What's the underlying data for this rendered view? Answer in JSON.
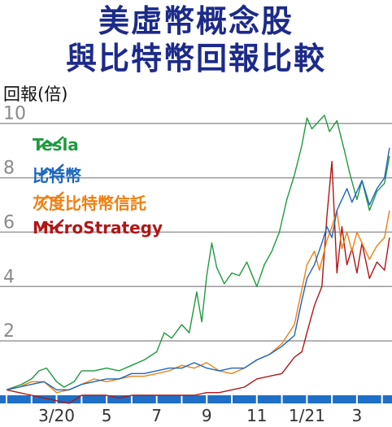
{
  "title_line1": "美虛幣概念股",
  "title_line2": "與比特幣回報比較",
  "chart_data": {
    "type": "line",
    "ylabel": "回報(倍)",
    "yticks": [
      "2",
      "4",
      "6",
      "8",
      "10"
    ],
    "ylim": [
      0,
      10.5
    ],
    "xticks": [
      {
        "label": "3/20",
        "m": 2
      },
      {
        "label": "5",
        "m": 4
      },
      {
        "label": "7",
        "m": 6
      },
      {
        "label": "9",
        "m": 8
      },
      {
        "label": "11",
        "m": 10
      },
      {
        "label": "1/21",
        "m": 12
      },
      {
        "label": "3",
        "m": 14
      }
    ],
    "xlim": [
      0,
      15.4
    ],
    "series": [
      {
        "name": "Tesla",
        "color": "#1e9a3e",
        "points": [
          [
            0,
            0.2
          ],
          [
            0.6,
            0.4
          ],
          [
            1,
            0.6
          ],
          [
            1.3,
            0.9
          ],
          [
            1.6,
            1.0
          ],
          [
            2,
            0.5
          ],
          [
            2.3,
            0.3
          ],
          [
            2.7,
            0.5
          ],
          [
            3,
            0.9
          ],
          [
            3.5,
            0.9
          ],
          [
            4,
            1.0
          ],
          [
            4.5,
            0.9
          ],
          [
            5,
            1.1
          ],
          [
            5.5,
            1.3
          ],
          [
            6,
            1.6
          ],
          [
            6.3,
            2.3
          ],
          [
            6.6,
            2.1
          ],
          [
            7,
            2.6
          ],
          [
            7.3,
            2.3
          ],
          [
            7.6,
            3.8
          ],
          [
            7.8,
            2.7
          ],
          [
            8,
            4.4
          ],
          [
            8.2,
            5.6
          ],
          [
            8.4,
            4.7
          ],
          [
            8.7,
            4.1
          ],
          [
            9,
            4.5
          ],
          [
            9.3,
            4.4
          ],
          [
            9.6,
            4.9
          ],
          [
            10,
            4.0
          ],
          [
            10.3,
            4.8
          ],
          [
            10.6,
            5.3
          ],
          [
            10.9,
            6.0
          ],
          [
            11.2,
            7.2
          ],
          [
            11.5,
            8.1
          ],
          [
            11.8,
            9.2
          ],
          [
            12,
            10.2
          ],
          [
            12.2,
            9.8
          ],
          [
            12.5,
            10.1
          ],
          [
            12.7,
            10.3
          ],
          [
            12.9,
            9.7
          ],
          [
            13.2,
            10.1
          ],
          [
            13.5,
            9.0
          ],
          [
            13.7,
            8.2
          ],
          [
            14,
            7.2
          ],
          [
            14.2,
            7.9
          ],
          [
            14.5,
            6.8
          ],
          [
            14.8,
            7.5
          ],
          [
            15.1,
            7.8
          ],
          [
            15.3,
            8.8
          ]
        ]
      },
      {
        "name": "比特幣",
        "color": "#1a66c0",
        "points": [
          [
            0,
            0.2
          ],
          [
            0.5,
            0.3
          ],
          [
            1,
            0.4
          ],
          [
            1.5,
            0.5
          ],
          [
            2,
            0.2
          ],
          [
            2.5,
            0.2
          ],
          [
            3,
            0.4
          ],
          [
            3.5,
            0.5
          ],
          [
            4,
            0.6
          ],
          [
            4.5,
            0.6
          ],
          [
            5,
            0.8
          ],
          [
            5.5,
            0.8
          ],
          [
            6,
            0.9
          ],
          [
            6.5,
            1.0
          ],
          [
            7,
            1.0
          ],
          [
            7.5,
            1.2
          ],
          [
            8,
            1.0
          ],
          [
            8.5,
            0.9
          ],
          [
            9,
            1.0
          ],
          [
            9.5,
            1.0
          ],
          [
            10,
            1.3
          ],
          [
            10.5,
            1.5
          ],
          [
            11,
            1.8
          ],
          [
            11.5,
            2.2
          ],
          [
            11.8,
            3.5
          ],
          [
            12,
            4.3
          ],
          [
            12.3,
            4.8
          ],
          [
            12.6,
            5.6
          ],
          [
            12.8,
            6.2
          ],
          [
            13,
            5.8
          ],
          [
            13.2,
            6.8
          ],
          [
            13.4,
            7.2
          ],
          [
            13.6,
            7.6
          ],
          [
            13.8,
            7.1
          ],
          [
            14,
            7.5
          ],
          [
            14.2,
            7.9
          ],
          [
            14.5,
            7.0
          ],
          [
            14.8,
            7.6
          ],
          [
            15.1,
            8.0
          ],
          [
            15.3,
            9.1
          ]
        ]
      },
      {
        "name": "灰度比特幣信託",
        "color": "#f07f12",
        "points": [
          [
            0,
            0.2
          ],
          [
            0.5,
            0.3
          ],
          [
            1,
            0.5
          ],
          [
            1.5,
            0.5
          ],
          [
            2,
            0.1
          ],
          [
            2.5,
            0.2
          ],
          [
            3,
            0.4
          ],
          [
            3.5,
            0.6
          ],
          [
            4,
            0.5
          ],
          [
            4.5,
            0.6
          ],
          [
            5,
            0.7
          ],
          [
            5.5,
            0.7
          ],
          [
            6,
            0.8
          ],
          [
            6.5,
            0.9
          ],
          [
            7,
            1.1
          ],
          [
            7.5,
            1.0
          ],
          [
            8,
            1.2
          ],
          [
            8.5,
            0.9
          ],
          [
            9,
            0.8
          ],
          [
            9.5,
            1.0
          ],
          [
            10,
            1.3
          ],
          [
            10.5,
            1.5
          ],
          [
            11,
            1.9
          ],
          [
            11.5,
            2.6
          ],
          [
            11.8,
            3.9
          ],
          [
            12,
            4.8
          ],
          [
            12.3,
            5.3
          ],
          [
            12.5,
            4.6
          ],
          [
            12.8,
            5.7
          ],
          [
            13,
            6.2
          ],
          [
            13.2,
            6.8
          ],
          [
            13.4,
            5.4
          ],
          [
            13.6,
            6.0
          ],
          [
            13.8,
            5.3
          ],
          [
            14,
            6.0
          ],
          [
            14.2,
            5.6
          ],
          [
            14.5,
            5.0
          ],
          [
            14.8,
            5.5
          ],
          [
            15.1,
            5.8
          ],
          [
            15.3,
            6.8
          ]
        ]
      },
      {
        "name": "MicroStrategy",
        "color": "#b01616",
        "points": [
          [
            0,
            0.2
          ],
          [
            0.5,
            0.1
          ],
          [
            1,
            0.0
          ],
          [
            1.5,
            -0.1
          ],
          [
            2,
            -0.2
          ],
          [
            2.5,
            -0.3
          ],
          [
            3,
            0.0
          ],
          [
            3.5,
            0.0
          ],
          [
            4,
            0.0
          ],
          [
            4.5,
            -0.1
          ],
          [
            5,
            0.0
          ],
          [
            5.5,
            0.0
          ],
          [
            6,
            0.0
          ],
          [
            6.5,
            0.0
          ],
          [
            7,
            0.0
          ],
          [
            7.5,
            0.0
          ],
          [
            8,
            0.1
          ],
          [
            8.5,
            0.1
          ],
          [
            9,
            0.2
          ],
          [
            9.5,
            0.3
          ],
          [
            10,
            0.6
          ],
          [
            10.5,
            0.7
          ],
          [
            11,
            0.8
          ],
          [
            11.5,
            1.4
          ],
          [
            11.8,
            1.6
          ],
          [
            12,
            2.3
          ],
          [
            12.3,
            3.3
          ],
          [
            12.6,
            4.0
          ],
          [
            12.8,
            6.6
          ],
          [
            13,
            8.6
          ],
          [
            13.2,
            4.5
          ],
          [
            13.4,
            6.2
          ],
          [
            13.6,
            4.8
          ],
          [
            13.8,
            5.4
          ],
          [
            14,
            4.5
          ],
          [
            14.2,
            5.6
          ],
          [
            14.5,
            4.3
          ],
          [
            14.8,
            4.9
          ],
          [
            15.1,
            4.6
          ],
          [
            15.3,
            5.8
          ]
        ]
      }
    ]
  }
}
